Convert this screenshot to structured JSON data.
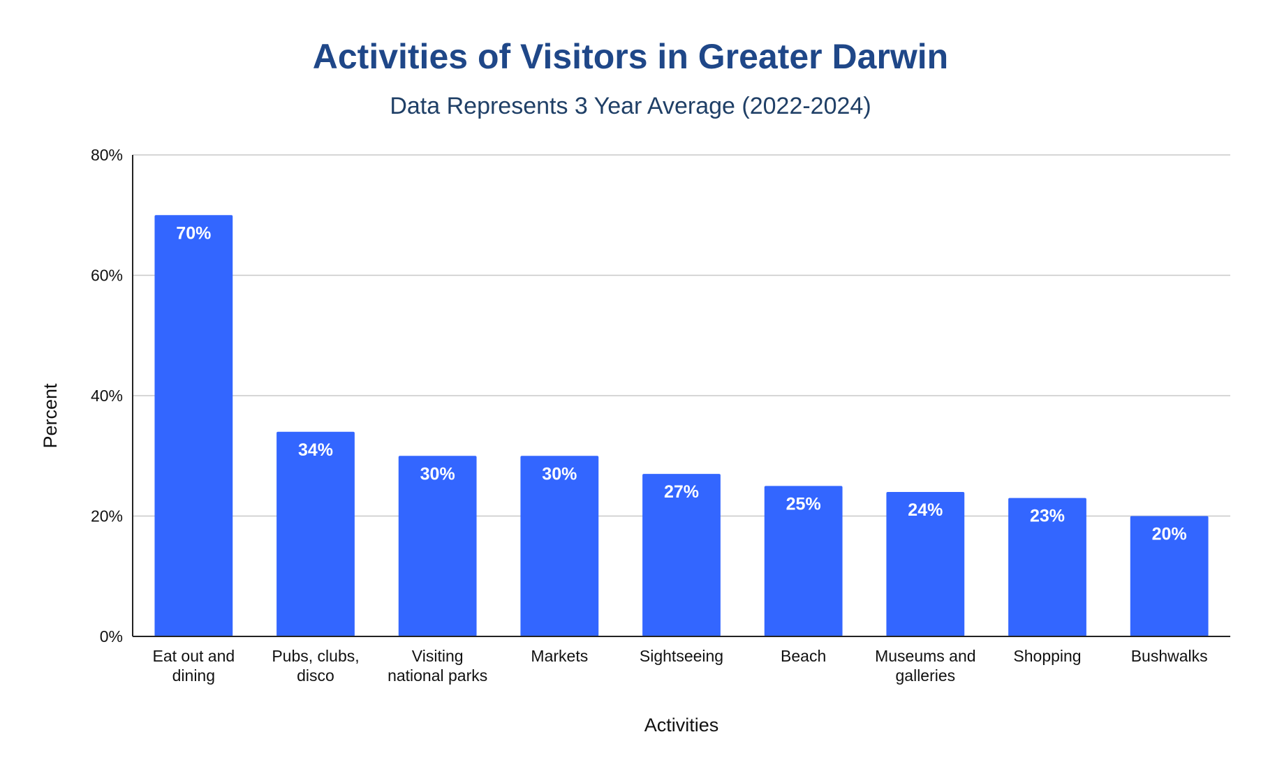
{
  "chart_data": {
    "type": "bar",
    "title": "Activities of Visitors in Greater Darwin",
    "subtitle": "Data Represents 3 Year Average (2022-2024)",
    "xlabel": "Activities",
    "ylabel": "Percent",
    "categories": [
      [
        "Eat out and",
        "dining"
      ],
      [
        "Pubs, clubs,",
        "disco"
      ],
      [
        "Visiting",
        "national parks"
      ],
      [
        "Markets"
      ],
      [
        "Sightseeing"
      ],
      [
        "Beach"
      ],
      [
        "Museums and",
        "galleries"
      ],
      [
        "Shopping"
      ],
      [
        "Bushwalks"
      ]
    ],
    "values": [
      70,
      34,
      30,
      30,
      27,
      25,
      24,
      23,
      20
    ],
    "data_labels": [
      "70%",
      "34%",
      "30%",
      "30%",
      "27%",
      "25%",
      "24%",
      "23%",
      "20%"
    ],
    "ylim": [
      0,
      80
    ],
    "yticks": [
      0,
      20,
      40,
      60,
      80
    ],
    "ytick_labels": [
      "0%",
      "20%",
      "40%",
      "60%",
      "80%"
    ],
    "grid": true,
    "legend": "none",
    "colors": {
      "bar": "#3366ff",
      "title": "#1f4788",
      "subtitle": "#1f3f66"
    }
  }
}
